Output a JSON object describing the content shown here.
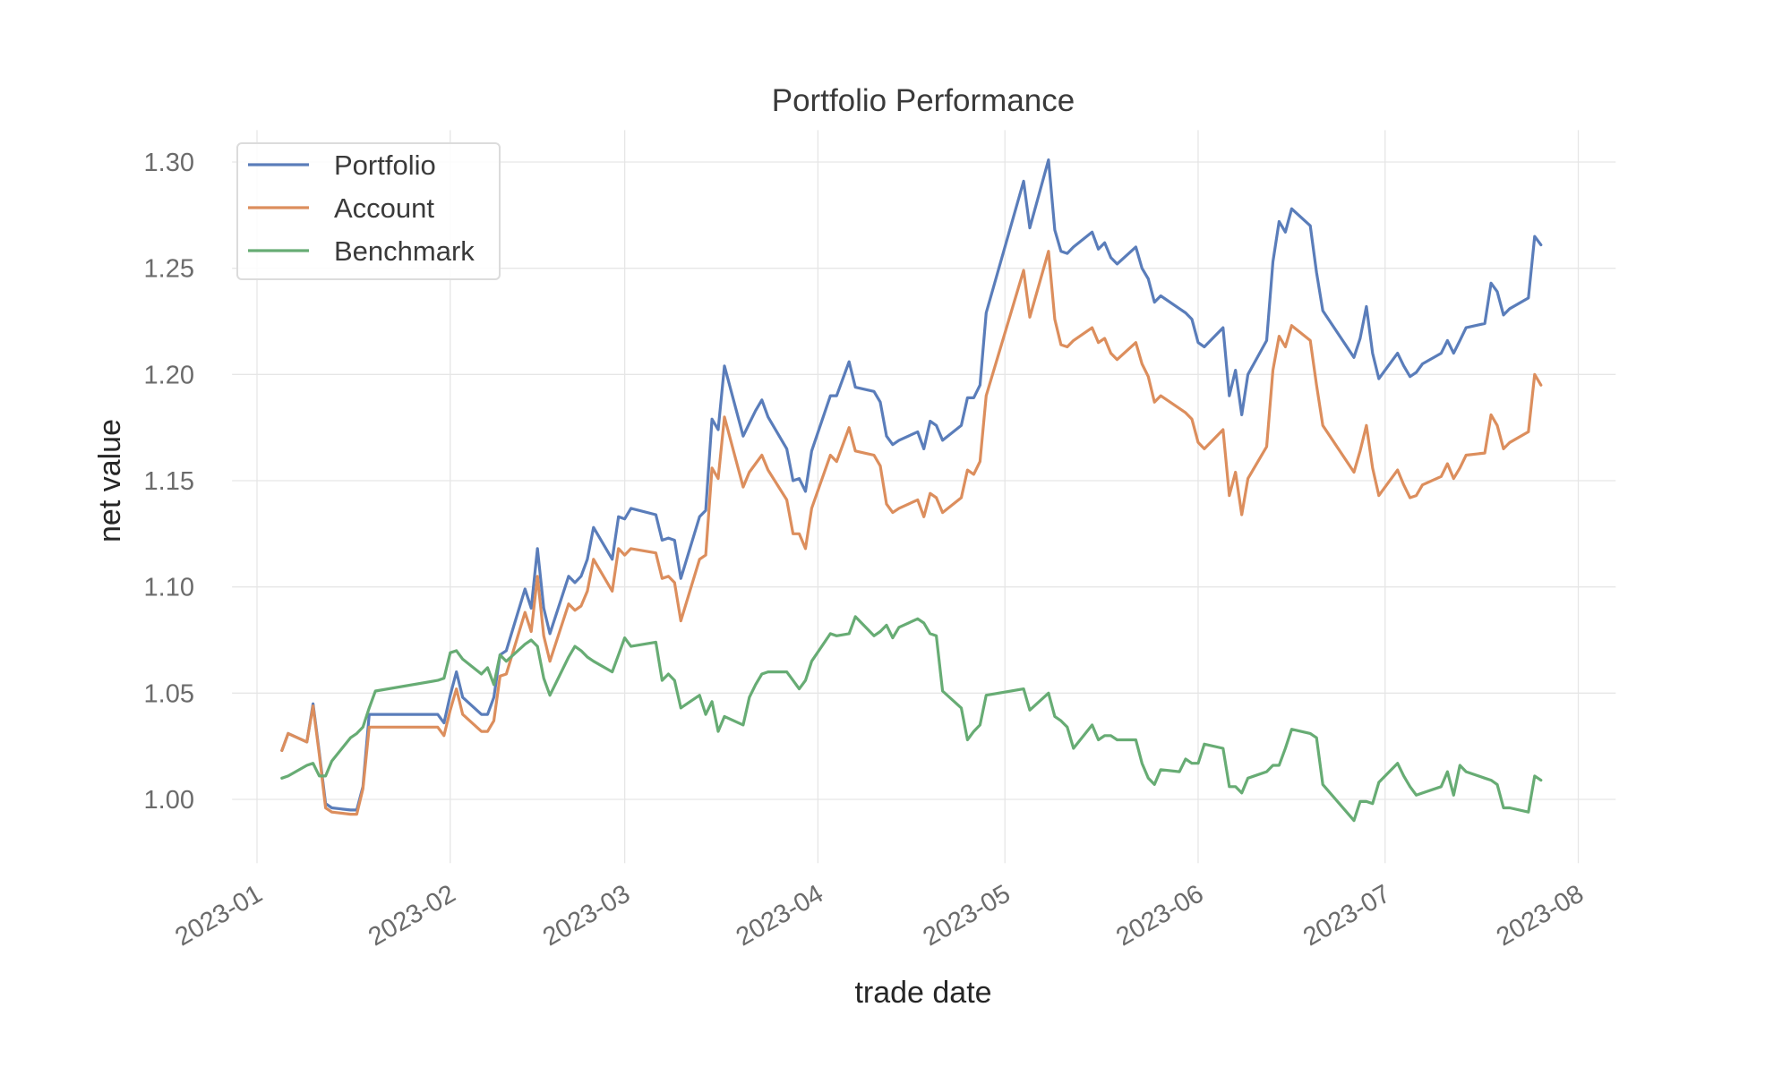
{
  "chart_data": {
    "type": "line",
    "title": "Portfolio Performance",
    "xlabel": "trade date",
    "ylabel": "net value",
    "ylim": [
      0.97,
      1.315
    ],
    "xlim": [
      "2022-12-28",
      "2023-08-07"
    ],
    "grid": true,
    "legend_position": "top-left",
    "y_ticks": [
      "1.00",
      "1.05",
      "1.10",
      "1.15",
      "1.20",
      "1.25",
      "1.30"
    ],
    "x_ticks": [
      "2023-01",
      "2023-02",
      "2023-03",
      "2023-04",
      "2023-05",
      "2023-06",
      "2023-07",
      "2023-08"
    ],
    "x": [
      "2023-01-05",
      "2023-01-06",
      "2023-01-09",
      "2023-01-10",
      "2023-01-11",
      "2023-01-12",
      "2023-01-13",
      "2023-01-16",
      "2023-01-17",
      "2023-01-18",
      "2023-01-19",
      "2023-01-20",
      "2023-01-30",
      "2023-01-31",
      "2023-02-01",
      "2023-02-02",
      "2023-02-03",
      "2023-02-06",
      "2023-02-07",
      "2023-02-08",
      "2023-02-09",
      "2023-02-10",
      "2023-02-13",
      "2023-02-14",
      "2023-02-15",
      "2023-02-16",
      "2023-02-17",
      "2023-02-20",
      "2023-02-21",
      "2023-02-22",
      "2023-02-23",
      "2023-02-24",
      "2023-02-27",
      "2023-02-28",
      "2023-03-01",
      "2023-03-02",
      "2023-03-06",
      "2023-03-07",
      "2023-03-08",
      "2023-03-09",
      "2023-03-10",
      "2023-03-13",
      "2023-03-14",
      "2023-03-15",
      "2023-03-16",
      "2023-03-17",
      "2023-03-20",
      "2023-03-21",
      "2023-03-22",
      "2023-03-23",
      "2023-03-24",
      "2023-03-27",
      "2023-03-28",
      "2023-03-29",
      "2023-03-30",
      "2023-03-31",
      "2023-04-03",
      "2023-04-04",
      "2023-04-06",
      "2023-04-07",
      "2023-04-10",
      "2023-04-11",
      "2023-04-12",
      "2023-04-13",
      "2023-04-14",
      "2023-04-17",
      "2023-04-18",
      "2023-04-19",
      "2023-04-20",
      "2023-04-21",
      "2023-04-24",
      "2023-04-25",
      "2023-04-26",
      "2023-04-27",
      "2023-04-28",
      "2023-05-04",
      "2023-05-05",
      "2023-05-08",
      "2023-05-09",
      "2023-05-10",
      "2023-05-11",
      "2023-05-12",
      "2023-05-15",
      "2023-05-16",
      "2023-05-17",
      "2023-05-18",
      "2023-05-19",
      "2023-05-22",
      "2023-05-23",
      "2023-05-24",
      "2023-05-25",
      "2023-05-26",
      "2023-05-29",
      "2023-05-30",
      "2023-05-31",
      "2023-06-01",
      "2023-06-02",
      "2023-06-05",
      "2023-06-06",
      "2023-06-07",
      "2023-06-08",
      "2023-06-09",
      "2023-06-12",
      "2023-06-13",
      "2023-06-14",
      "2023-06-15",
      "2023-06-16",
      "2023-06-19",
      "2023-06-20",
      "2023-06-21",
      "2023-06-26",
      "2023-06-27",
      "2023-06-28",
      "2023-06-29",
      "2023-06-30",
      "2023-07-03",
      "2023-07-04",
      "2023-07-05",
      "2023-07-06",
      "2023-07-07",
      "2023-07-10",
      "2023-07-11",
      "2023-07-12",
      "2023-07-13",
      "2023-07-14",
      "2023-07-17",
      "2023-07-18",
      "2023-07-19",
      "2023-07-20",
      "2023-07-21",
      "2023-07-24",
      "2023-07-25",
      "2023-07-26"
    ],
    "series": [
      {
        "name": "Portfolio",
        "color": "#5a7dba",
        "values": [
          1.023,
          1.031,
          1.027,
          1.045,
          1.022,
          0.998,
          0.996,
          0.995,
          0.995,
          1.006,
          1.04,
          1.04,
          1.04,
          1.036,
          1.049,
          1.06,
          1.048,
          1.04,
          1.04,
          1.048,
          1.068,
          1.07,
          1.099,
          1.09,
          1.118,
          1.09,
          1.078,
          1.105,
          1.102,
          1.105,
          1.113,
          1.128,
          1.113,
          1.133,
          1.132,
          1.137,
          1.134,
          1.122,
          1.123,
          1.122,
          1.104,
          1.133,
          1.136,
          1.179,
          1.174,
          1.204,
          1.171,
          1.177,
          1.183,
          1.188,
          1.18,
          1.165,
          1.15,
          1.151,
          1.145,
          1.164,
          1.19,
          1.19,
          1.206,
          1.194,
          1.192,
          1.187,
          1.171,
          1.167,
          1.169,
          1.173,
          1.165,
          1.178,
          1.176,
          1.169,
          1.176,
          1.189,
          1.189,
          1.195,
          1.229,
          1.291,
          1.269,
          1.301,
          1.268,
          1.258,
          1.257,
          1.26,
          1.267,
          1.259,
          1.262,
          1.255,
          1.252,
          1.26,
          1.25,
          1.245,
          1.234,
          1.237,
          1.231,
          1.229,
          1.226,
          1.215,
          1.213,
          1.222,
          1.19,
          1.202,
          1.181,
          1.2,
          1.216,
          1.253,
          1.272,
          1.267,
          1.278,
          1.27,
          1.248,
          1.23,
          1.208,
          1.217,
          1.232,
          1.21,
          1.198,
          1.21,
          1.204,
          1.199,
          1.201,
          1.205,
          1.21,
          1.216,
          1.21,
          1.216,
          1.222,
          1.224,
          1.243,
          1.239,
          1.228,
          1.231,
          1.236,
          1.265,
          1.261
        ]
      },
      {
        "name": "Account",
        "color": "#dc8e5d",
        "values": [
          1.023,
          1.031,
          1.027,
          1.044,
          1.021,
          0.996,
          0.994,
          0.993,
          0.993,
          1.005,
          1.034,
          1.034,
          1.034,
          1.03,
          1.042,
          1.052,
          1.04,
          1.032,
          1.032,
          1.037,
          1.058,
          1.059,
          1.088,
          1.079,
          1.105,
          1.077,
          1.065,
          1.092,
          1.089,
          1.091,
          1.098,
          1.113,
          1.098,
          1.118,
          1.115,
          1.118,
          1.116,
          1.104,
          1.105,
          1.102,
          1.084,
          1.113,
          1.115,
          1.156,
          1.151,
          1.18,
          1.147,
          1.154,
          1.158,
          1.162,
          1.155,
          1.141,
          1.125,
          1.125,
          1.118,
          1.137,
          1.162,
          1.159,
          1.175,
          1.164,
          1.162,
          1.157,
          1.139,
          1.135,
          1.137,
          1.141,
          1.133,
          1.144,
          1.142,
          1.135,
          1.142,
          1.155,
          1.153,
          1.159,
          1.19,
          1.249,
          1.227,
          1.258,
          1.226,
          1.214,
          1.213,
          1.216,
          1.222,
          1.215,
          1.217,
          1.21,
          1.207,
          1.215,
          1.205,
          1.199,
          1.187,
          1.19,
          1.184,
          1.182,
          1.179,
          1.168,
          1.165,
          1.174,
          1.143,
          1.154,
          1.134,
          1.151,
          1.166,
          1.202,
          1.218,
          1.213,
          1.223,
          1.216,
          1.195,
          1.176,
          1.154,
          1.164,
          1.176,
          1.156,
          1.143,
          1.155,
          1.148,
          1.142,
          1.143,
          1.148,
          1.152,
          1.158,
          1.151,
          1.156,
          1.162,
          1.163,
          1.181,
          1.176,
          1.165,
          1.168,
          1.173,
          1.2,
          1.195
        ]
      },
      {
        "name": "Benchmark",
        "color": "#67ac74",
        "values": [
          1.01,
          1.011,
          1.016,
          1.017,
          1.011,
          1.011,
          1.018,
          1.029,
          1.031,
          1.034,
          1.043,
          1.051,
          1.056,
          1.057,
          1.069,
          1.07,
          1.066,
          1.059,
          1.062,
          1.054,
          1.068,
          1.065,
          1.073,
          1.075,
          1.072,
          1.057,
          1.049,
          1.067,
          1.072,
          1.07,
          1.067,
          1.065,
          1.06,
          1.068,
          1.076,
          1.072,
          1.074,
          1.056,
          1.059,
          1.056,
          1.043,
          1.049,
          1.04,
          1.046,
          1.032,
          1.039,
          1.035,
          1.048,
          1.054,
          1.059,
          1.06,
          1.06,
          1.056,
          1.052,
          1.056,
          1.065,
          1.078,
          1.077,
          1.078,
          1.086,
          1.077,
          1.079,
          1.082,
          1.076,
          1.081,
          1.085,
          1.083,
          1.078,
          1.077,
          1.051,
          1.043,
          1.028,
          1.032,
          1.035,
          1.049,
          1.052,
          1.042,
          1.05,
          1.039,
          1.037,
          1.034,
          1.024,
          1.035,
          1.028,
          1.03,
          1.03,
          1.028,
          1.028,
          1.017,
          1.01,
          1.007,
          1.014,
          1.013,
          1.019,
          1.017,
          1.017,
          1.026,
          1.024,
          1.006,
          1.006,
          1.003,
          1.01,
          1.013,
          1.016,
          1.016,
          1.024,
          1.033,
          1.031,
          1.029,
          1.007,
          0.99,
          0.999,
          0.999,
          0.998,
          1.008,
          1.017,
          1.011,
          1.006,
          1.002,
          1.003,
          1.006,
          1.013,
          1.002,
          1.016,
          1.013,
          1.01,
          1.009,
          1.007,
          0.996,
          0.996,
          0.994,
          1.011,
          1.009
        ]
      }
    ]
  }
}
